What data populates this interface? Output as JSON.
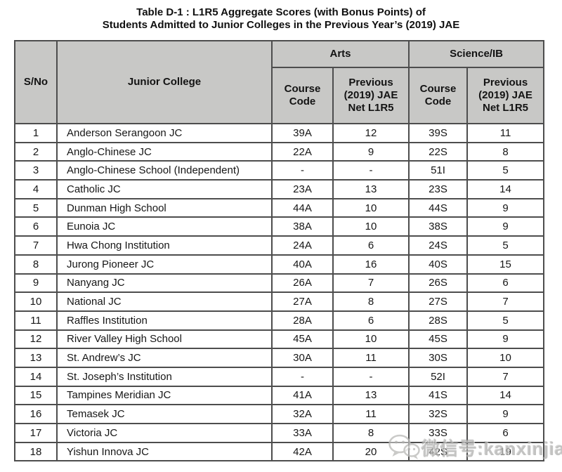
{
  "title": {
    "line1": "Table D-1 : L1R5 Aggregate Scores (with Bonus Points) of",
    "line2": "Students Admitted to Junior Colleges in the Previous Year’s (2019) JAE"
  },
  "table": {
    "headers": {
      "sno": "S/No",
      "junior_college": "Junior College",
      "arts_group": "Arts",
      "science_group": "Science/IB",
      "course_code": "Course Code",
      "previous_jae_net_l1r5": "Previous (2019) JAE Net L1R5"
    },
    "rows": [
      {
        "sno": "1",
        "college": "Anderson Serangoon JC",
        "arts_code": "39A",
        "arts_l1r5": "12",
        "sci_code": "39S",
        "sci_l1r5": "11"
      },
      {
        "sno": "2",
        "college": "Anglo-Chinese JC",
        "arts_code": "22A",
        "arts_l1r5": "9",
        "sci_code": "22S",
        "sci_l1r5": "8"
      },
      {
        "sno": "3",
        "college": "Anglo-Chinese School (Independent)",
        "arts_code": "-",
        "arts_l1r5": "-",
        "sci_code": "51I",
        "sci_l1r5": "5"
      },
      {
        "sno": "4",
        "college": "Catholic JC",
        "arts_code": "23A",
        "arts_l1r5": "13",
        "sci_code": "23S",
        "sci_l1r5": "14"
      },
      {
        "sno": "5",
        "college": "Dunman High School",
        "arts_code": "44A",
        "arts_l1r5": "10",
        "sci_code": "44S",
        "sci_l1r5": "9"
      },
      {
        "sno": "6",
        "college": "Eunoia JC",
        "arts_code": "38A",
        "arts_l1r5": "10",
        "sci_code": "38S",
        "sci_l1r5": "9"
      },
      {
        "sno": "7",
        "college": "Hwa Chong Institution",
        "arts_code": "24A",
        "arts_l1r5": "6",
        "sci_code": "24S",
        "sci_l1r5": "5"
      },
      {
        "sno": "8",
        "college": "Jurong Pioneer JC",
        "arts_code": "40A",
        "arts_l1r5": "16",
        "sci_code": "40S",
        "sci_l1r5": "15"
      },
      {
        "sno": "9",
        "college": "Nanyang JC",
        "arts_code": "26A",
        "arts_l1r5": "7",
        "sci_code": "26S",
        "sci_l1r5": "6"
      },
      {
        "sno": "10",
        "college": "National JC",
        "arts_code": "27A",
        "arts_l1r5": "8",
        "sci_code": "27S",
        "sci_l1r5": "7"
      },
      {
        "sno": "11",
        "college": "Raffles Institution",
        "arts_code": "28A",
        "arts_l1r5": "6",
        "sci_code": "28S",
        "sci_l1r5": "5"
      },
      {
        "sno": "12",
        "college": "River Valley High School",
        "arts_code": "45A",
        "arts_l1r5": "10",
        "sci_code": "45S",
        "sci_l1r5": "9"
      },
      {
        "sno": "13",
        "college": "St. Andrew’s JC",
        "arts_code": "30A",
        "arts_l1r5": "11",
        "sci_code": "30S",
        "sci_l1r5": "10"
      },
      {
        "sno": "14",
        "college": "St. Joseph’s Institution",
        "arts_code": "-",
        "arts_l1r5": "-",
        "sci_code": "52I",
        "sci_l1r5": "7"
      },
      {
        "sno": "15",
        "college": "Tampines Meridian JC",
        "arts_code": "41A",
        "arts_l1r5": "13",
        "sci_code": "41S",
        "sci_l1r5": "14"
      },
      {
        "sno": "16",
        "college": "Temasek JC",
        "arts_code": "32A",
        "arts_l1r5": "11",
        "sci_code": "32S",
        "sci_l1r5": "9"
      },
      {
        "sno": "17",
        "college": "Victoria JC",
        "arts_code": "33A",
        "arts_l1r5": "8",
        "sci_code": "33S",
        "sci_l1r5": "6"
      },
      {
        "sno": "18",
        "college": "Yishun Innova JC",
        "arts_code": "42A",
        "arts_l1r5": "20",
        "sci_code": "42S",
        "sci_l1r5": "19"
      }
    ]
  },
  "watermark": {
    "icon": "wechat-icon",
    "text": "微信号:kanxinjiapo"
  },
  "colors": {
    "header_bg": "#c8c8c6",
    "border": "#4d4d4d",
    "text": "#141414",
    "watermark": "#b5b5b3",
    "background": "#ffffff"
  }
}
